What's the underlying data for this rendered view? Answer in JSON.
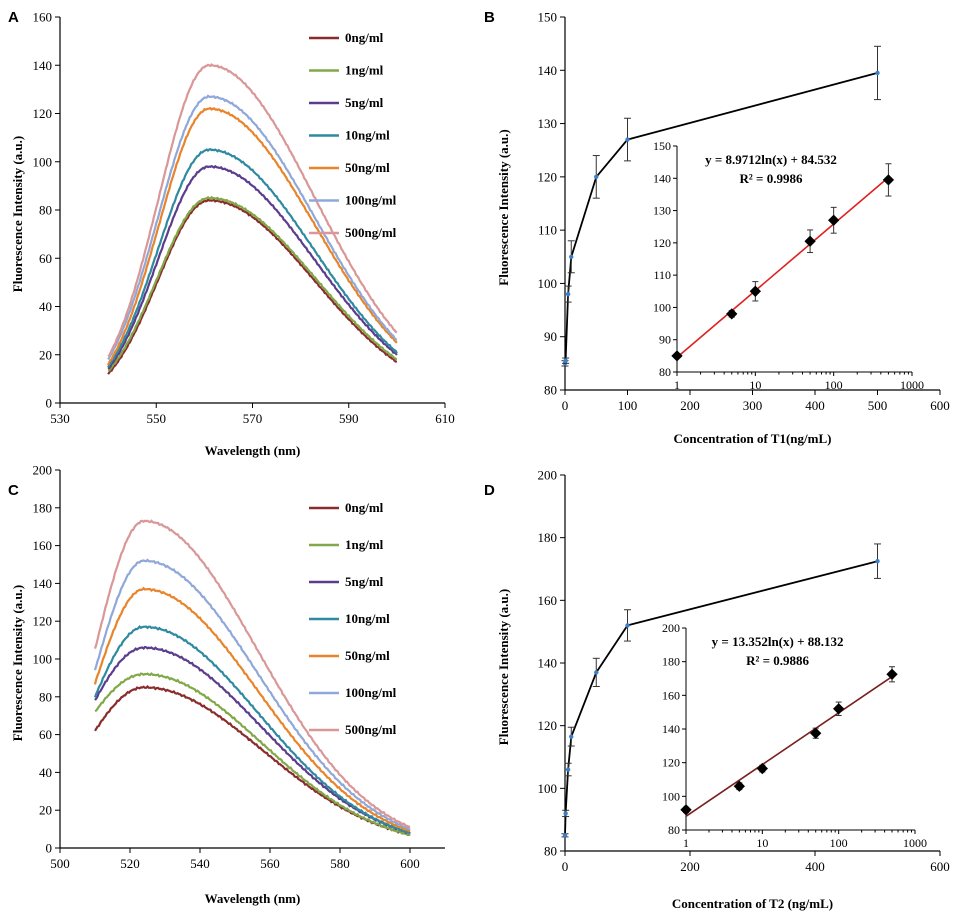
{
  "chart_data": [
    {
      "panel": "A",
      "type": "line",
      "xlabel": "Wavelength (nm)",
      "ylabel": "Fluorescence Intensity (a.u.)",
      "xlim": [
        530,
        610
      ],
      "ylim": [
        0,
        160
      ],
      "xticks": [
        530,
        550,
        570,
        590,
        610
      ],
      "yticks": [
        0,
        20,
        40,
        60,
        80,
        100,
        120,
        140,
        160
      ],
      "x_range": [
        540,
        600
      ],
      "peak_x": 561,
      "legend": "top-right",
      "series": [
        {
          "name": "0ng/ml",
          "color": "#8b2c2c",
          "start": 12,
          "peak": 84,
          "end": 17
        },
        {
          "name": "1ng/ml",
          "color": "#82a849",
          "start": 13,
          "peak": 85,
          "end": 18
        },
        {
          "name": "5ng/ml",
          "color": "#5b3d8c",
          "start": 14,
          "peak": 98,
          "end": 20
        },
        {
          "name": "10ng/ml",
          "color": "#2f8aa0",
          "start": 15,
          "peak": 105,
          "end": 21
        },
        {
          "name": "50ng/ml",
          "color": "#e8842a",
          "start": 16,
          "peak": 122,
          "end": 25
        },
        {
          "name": "100ng/ml",
          "color": "#8fa8d8",
          "start": 18,
          "peak": 127,
          "end": 26
        },
        {
          "name": "500ng/ml",
          "color": "#d99797",
          "start": 19,
          "peak": 140,
          "end": 29
        }
      ]
    },
    {
      "panel": "B",
      "type": "line",
      "xlabel": "Concentration of T1(ng/mL)",
      "ylabel": "Fluorescence Intensity (a.u.)",
      "xlim": [
        0,
        600
      ],
      "ylim": [
        80,
        150
      ],
      "xticks": [
        0,
        100,
        200,
        300,
        400,
        500,
        600
      ],
      "yticks": [
        80,
        90,
        100,
        110,
        120,
        130,
        140,
        150
      ],
      "x": [
        0,
        1,
        5,
        10,
        50,
        100,
        500
      ],
      "y": [
        85,
        85.5,
        98,
        105,
        120,
        127,
        139.5
      ],
      "error": [
        0.5,
        0.5,
        1.5,
        3,
        4,
        4,
        5
      ],
      "inset": {
        "type": "scatter",
        "xscale": "log",
        "xlim": [
          1,
          1000
        ],
        "xticks": [
          1,
          10,
          100,
          1000
        ],
        "ylim": [
          80,
          150
        ],
        "yticks": [
          80,
          90,
          100,
          110,
          120,
          130,
          140,
          150
        ],
        "x": [
          1,
          5,
          10,
          50,
          100,
          500
        ],
        "y": [
          85,
          98,
          105,
          120.5,
          127,
          139.5
        ],
        "error": [
          0.5,
          1,
          3,
          3.5,
          4,
          5
        ],
        "fit": {
          "a": 8.9712,
          "b": 84.532
        },
        "fit_color": "#e02020",
        "equation": "y = 8.9712ln(x) + 84.532",
        "r2": "R² = 0.9986"
      }
    },
    {
      "panel": "C",
      "type": "line",
      "xlabel": "Wavelength (nm)",
      "ylabel": "Fluorescence Intensity (a.u.)",
      "xlim": [
        500,
        610
      ],
      "ylim": [
        0,
        200
      ],
      "xticks": [
        500,
        520,
        540,
        560,
        580,
        600
      ],
      "yticks": [
        0,
        20,
        40,
        60,
        80,
        100,
        120,
        140,
        160,
        180,
        200
      ],
      "x_range": [
        510,
        600
      ],
      "peak_x": 524,
      "legend": "top-right",
      "series": [
        {
          "name": "0ng/ml",
          "color": "#8b2c2c",
          "start": 62,
          "peak": 85,
          "end": 7
        },
        {
          "name": "1ng/ml",
          "color": "#82a849",
          "start": 72,
          "peak": 92,
          "end": 7
        },
        {
          "name": "5ng/ml",
          "color": "#5b3d8c",
          "start": 78,
          "peak": 106,
          "end": 8
        },
        {
          "name": "10ng/ml",
          "color": "#2f8aa0",
          "start": 80,
          "peak": 117,
          "end": 8
        },
        {
          "name": "50ng/ml",
          "color": "#e8842a",
          "start": 87,
          "peak": 137,
          "end": 9
        },
        {
          "name": "100ng/ml",
          "color": "#8fa8d8",
          "start": 94,
          "peak": 152,
          "end": 10
        },
        {
          "name": "500ng/ml",
          "color": "#d99797",
          "start": 105,
          "peak": 173,
          "end": 11
        }
      ]
    },
    {
      "panel": "D",
      "type": "line",
      "xlabel": "Concentration of T2 (ng/mL)",
      "ylabel": "Fluorescence Intensity (a.u.)",
      "xlim": [
        0,
        600
      ],
      "ylim": [
        80,
        200
      ],
      "xticks": [
        0,
        200,
        400,
        600
      ],
      "yticks": [
        80,
        100,
        120,
        140,
        160,
        180,
        200
      ],
      "x": [
        0,
        1,
        5,
        10,
        50,
        100,
        500
      ],
      "y": [
        85,
        92,
        106,
        116.5,
        137,
        152,
        172.5
      ],
      "error": [
        0.5,
        1,
        2,
        3,
        4.5,
        5,
        5.5
      ],
      "inset": {
        "type": "scatter",
        "xscale": "log",
        "xlim": [
          1,
          1000
        ],
        "xticks": [
          1,
          10,
          100,
          1000
        ],
        "ylim": [
          80,
          200
        ],
        "yticks": [
          80,
          100,
          120,
          140,
          160,
          180,
          200
        ],
        "x": [
          1,
          5,
          10,
          50,
          100,
          500
        ],
        "y": [
          92,
          106,
          116.5,
          137.5,
          152,
          172.5
        ],
        "error": [
          1.5,
          2,
          2,
          3,
          4,
          4.5
        ],
        "fit": {
          "a": 13.352,
          "b": 88.132
        },
        "fit_color": "#7a2020",
        "equation": "y = 13.352ln(x) + 88.132",
        "r2": "R² = 0.9886"
      }
    }
  ]
}
